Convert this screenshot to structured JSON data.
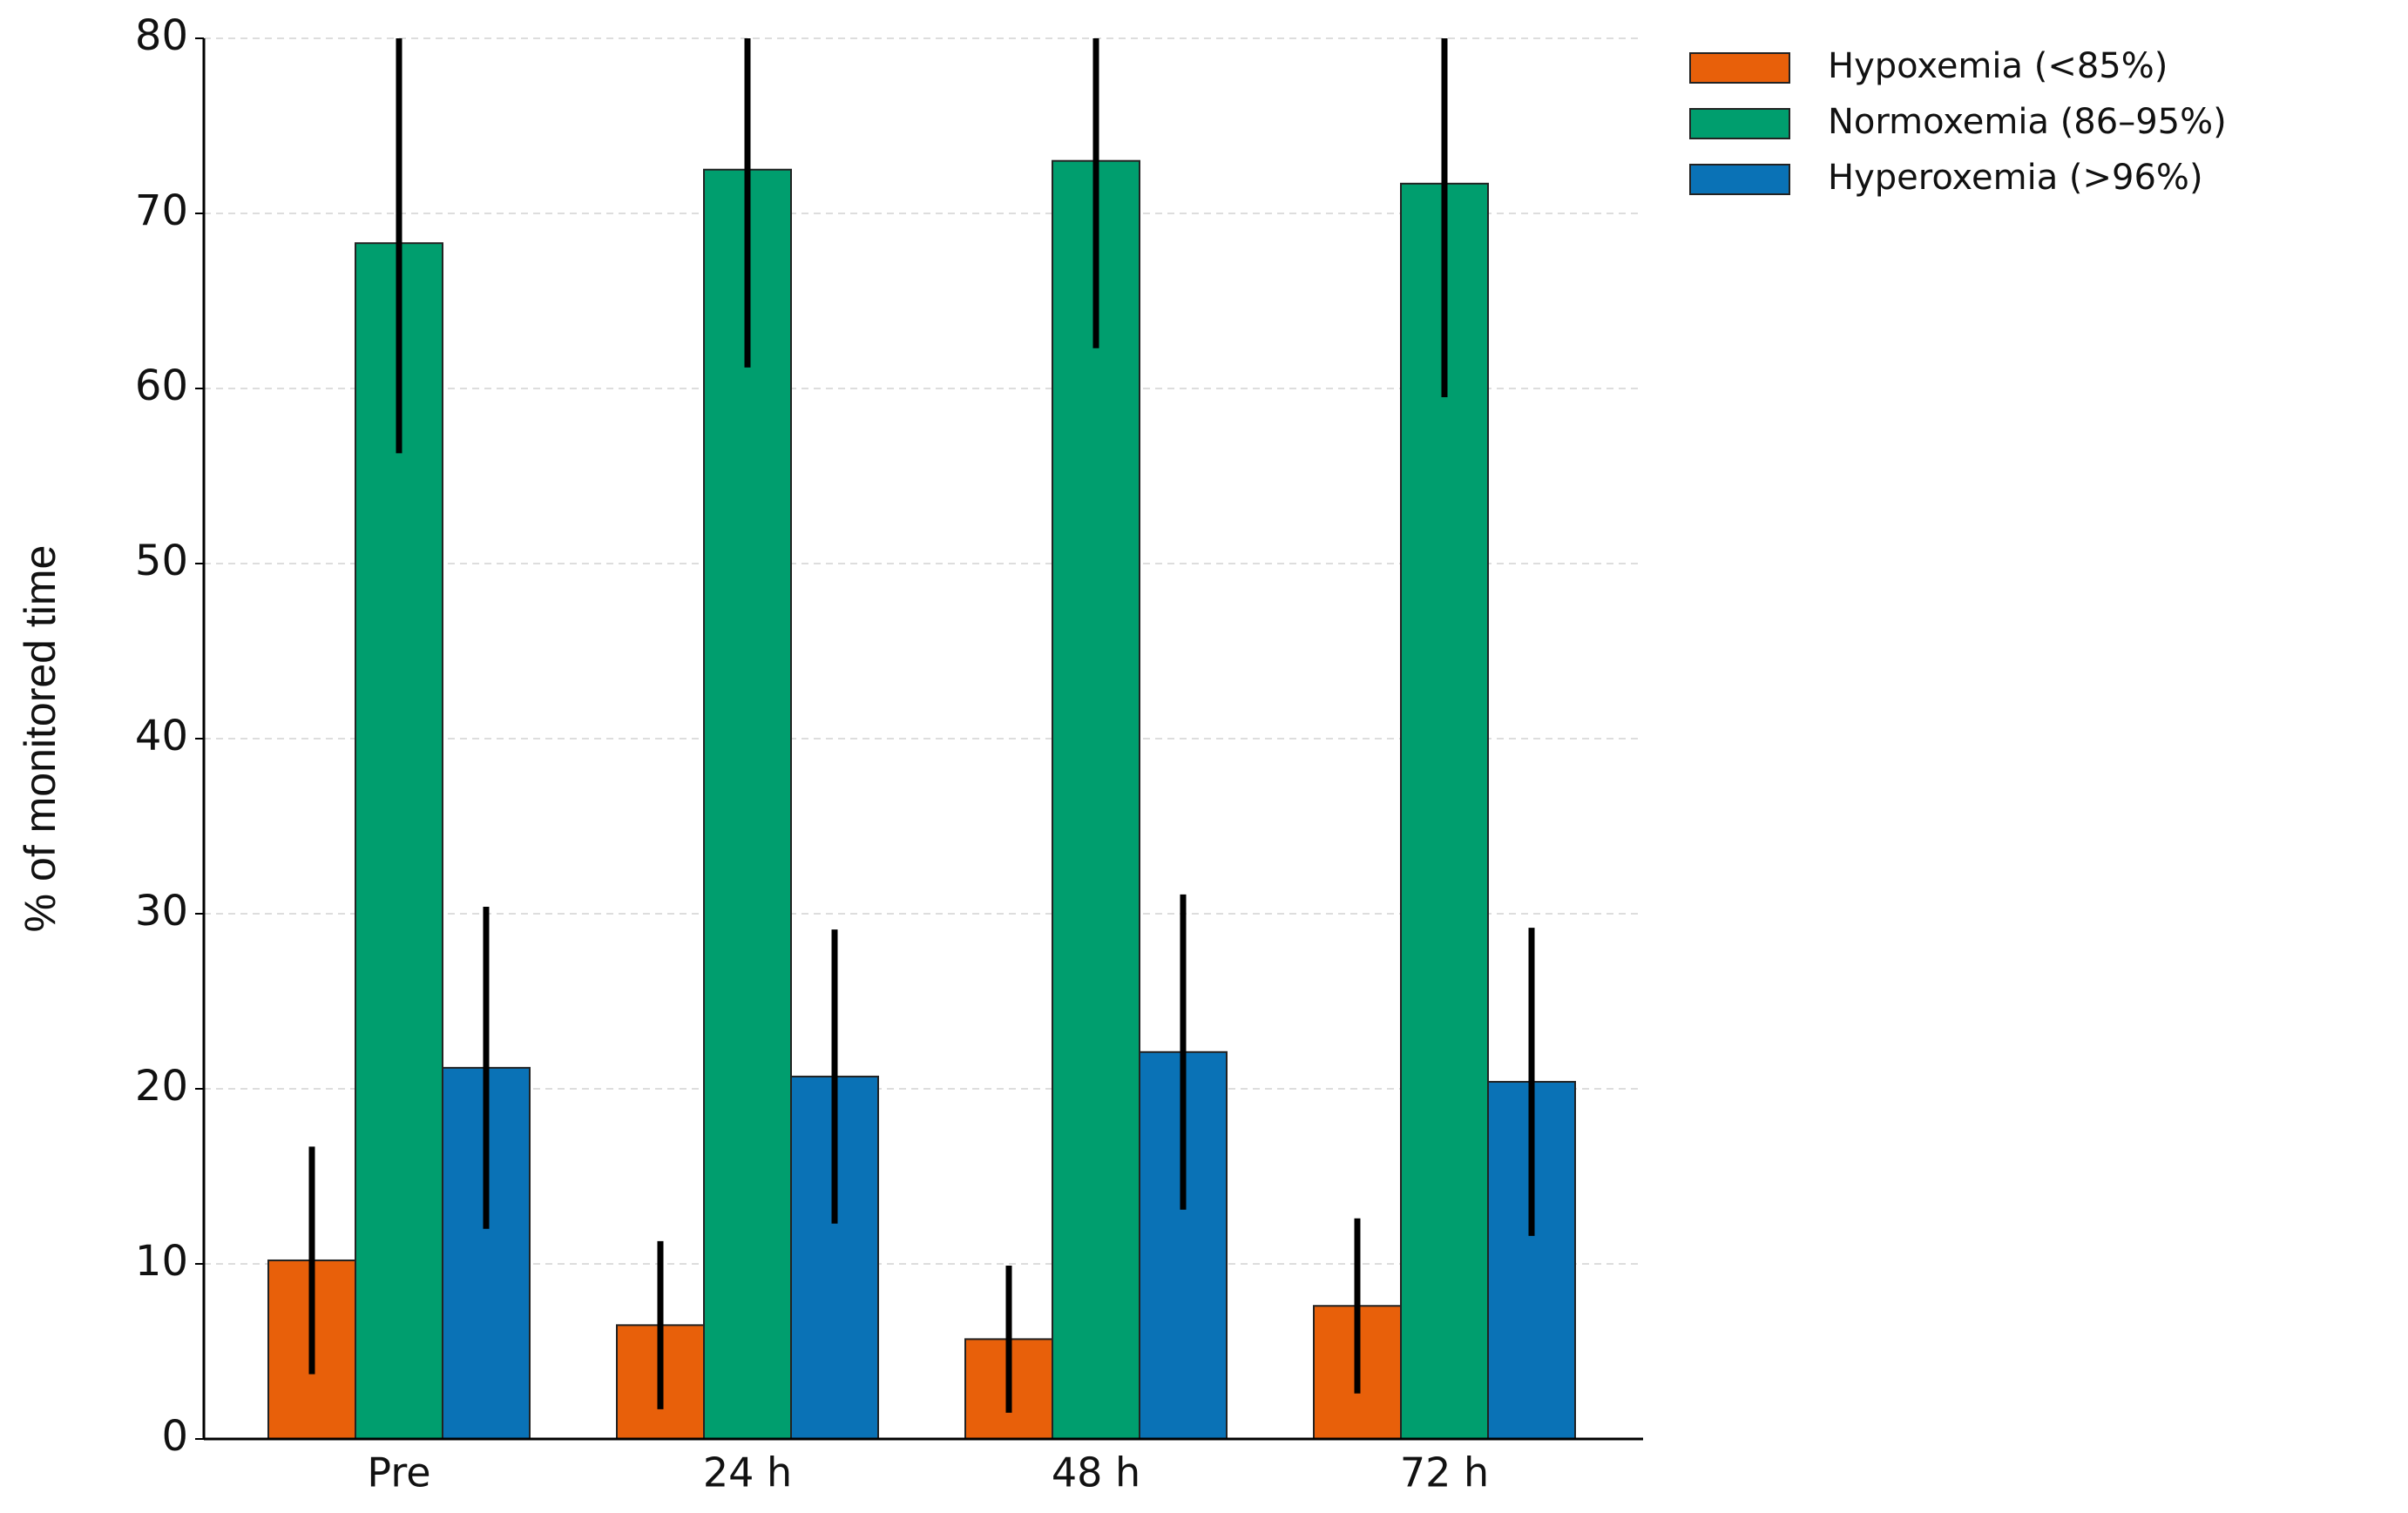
{
  "chart_data": {
    "type": "bar",
    "y_label": "% of monitored time",
    "categories": [
      "Pre",
      "24 h",
      "48 h",
      "72 h"
    ],
    "series": [
      {
        "name": "Hypoxemia (<85%)",
        "color": "#e8600a",
        "values": [
          10.2,
          6.5,
          5.7,
          7.6
        ],
        "errors": [
          6.5,
          4.8,
          4.2,
          5.0
        ]
      },
      {
        "name": "Normoxemia (86–95%)",
        "color": "#009e6e",
        "values": [
          68.3,
          72.5,
          73.0,
          71.7
        ],
        "errors": [
          12.0,
          11.3,
          10.7,
          12.2
        ]
      },
      {
        "name": "Hyperoxemia (>96%)",
        "color": "#0a72b6",
        "values": [
          21.2,
          20.7,
          22.1,
          20.4
        ],
        "errors": [
          9.2,
          8.4,
          9.0,
          8.8
        ]
      }
    ],
    "ylim": [
      0,
      80
    ],
    "yticks": [
      0,
      10,
      20,
      30,
      40,
      50,
      60,
      70,
      80
    ],
    "grid": true,
    "legend": "upper right"
  }
}
